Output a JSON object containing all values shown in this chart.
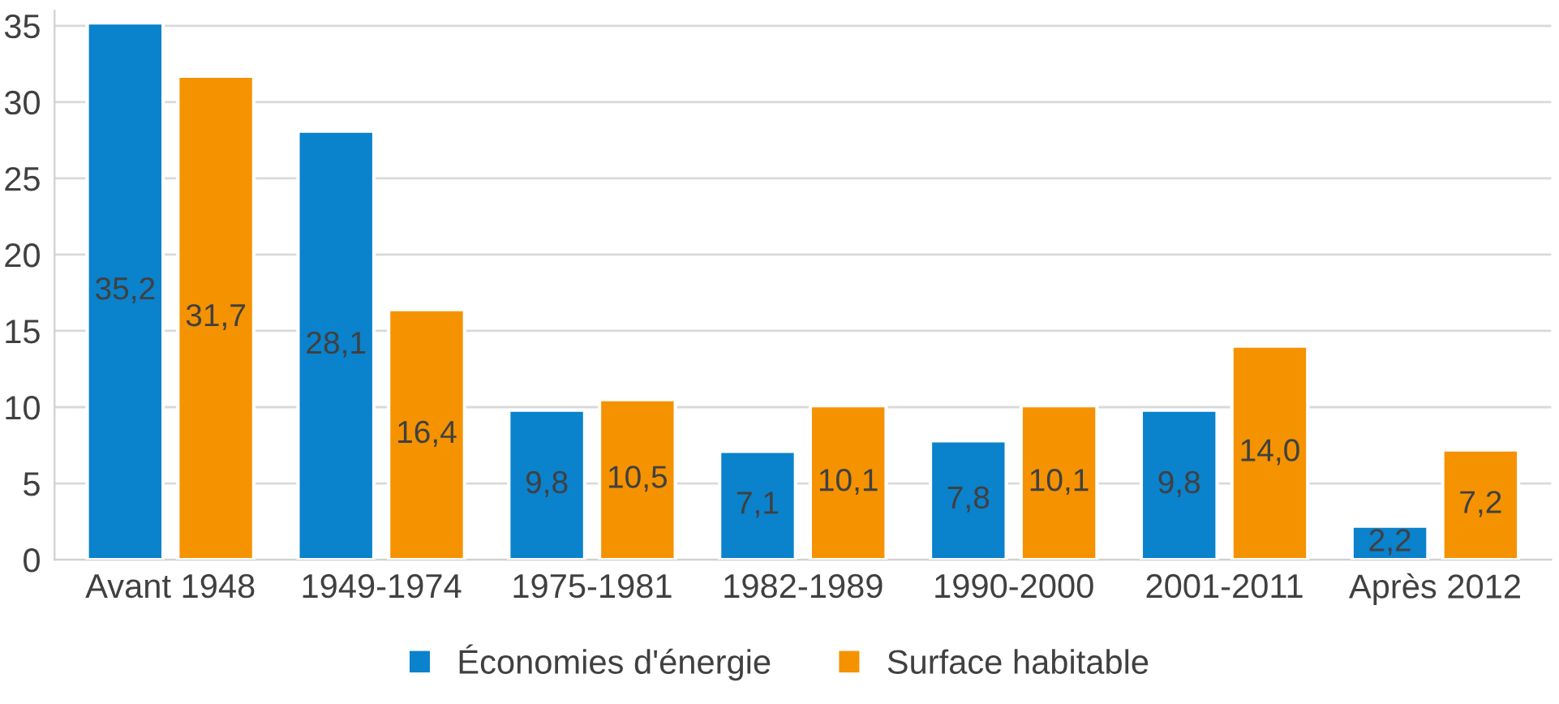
{
  "chart_data": {
    "type": "bar",
    "categories": [
      "Avant 1948",
      "1949-1974",
      "1975-1981",
      "1982-1989",
      "1990-2000",
      "2001-2011",
      "Après 2012"
    ],
    "series": [
      {
        "name": "Économies d'énergie",
        "color": "#0a82cc",
        "values": [
          35.2,
          28.1,
          9.8,
          7.1,
          7.8,
          9.8,
          2.2
        ],
        "value_labels": [
          "35,2",
          "28,1",
          "9,8",
          "7,1",
          "7,8",
          "9,8",
          "2,2"
        ]
      },
      {
        "name": "Surface habitable",
        "color": "#f59200",
        "values": [
          31.7,
          16.4,
          10.5,
          10.1,
          10.1,
          14.0,
          7.2
        ],
        "value_labels": [
          "31,7",
          "16,4",
          "10,5",
          "10,1",
          "10,1",
          "14,0",
          "7,2"
        ]
      }
    ],
    "ylim": [
      0,
      36
    ],
    "yticks": [
      0,
      5,
      10,
      15,
      20,
      25,
      30,
      35
    ],
    "grid": "y",
    "legend": "bottom"
  }
}
